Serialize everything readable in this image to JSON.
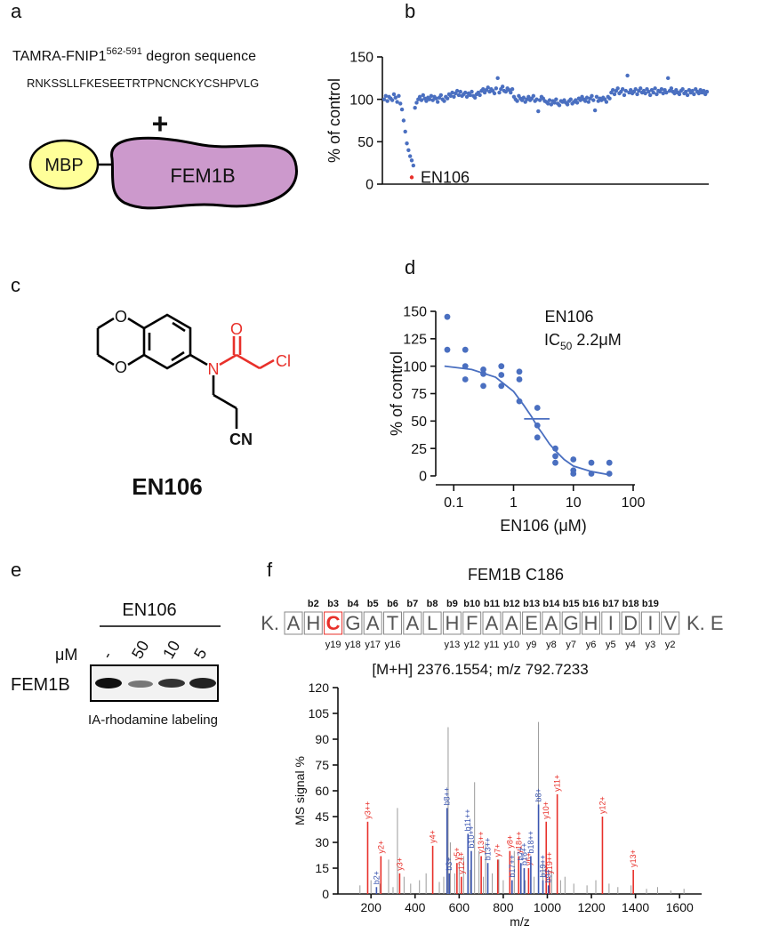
{
  "panels": {
    "a": {
      "label": "a",
      "title_parts": [
        "TAMRA-FNIP1",
        "562-591",
        " degron sequence"
      ],
      "sequence": "RNKSSLLFKESEETRTPNCNCKYCSHPVLG",
      "plus": "+",
      "tag": "MBP",
      "protein": "FEM1B"
    },
    "b": {
      "label": "b"
    },
    "c": {
      "label": "c",
      "atoms": [
        "O",
        "O",
        "N",
        "O",
        "Cl",
        "CN"
      ],
      "name": "EN106"
    },
    "d": {
      "label": "d"
    },
    "e": {
      "label": "e",
      "compound": "EN106",
      "unit": "μM",
      "lanes": [
        "-",
        "50",
        "10",
        "5"
      ],
      "protein": "FEM1B",
      "caption": "IA-rhodamine labeling"
    },
    "f": {
      "label": "f",
      "title": "FEM1B C186",
      "prefix": "K.",
      "residues": [
        "A",
        "H",
        "C",
        "G",
        "A",
        "T",
        "A",
        "L",
        "H",
        "F",
        "A",
        "A",
        "E",
        "A",
        "G",
        "H",
        "I",
        "D",
        "I",
        "V"
      ],
      "modified_residue": 2,
      "suffix": "K. E",
      "b_ions": [
        "b2",
        "b3",
        "b4",
        "b5",
        "b6",
        "b7",
        "b8",
        "b9",
        "b10",
        "b11",
        "b12",
        "b13",
        "b14",
        "b15",
        "b16",
        "b17",
        "b18",
        "b19"
      ],
      "y_ions": [
        "y19",
        "y18",
        "y17",
        "y16",
        "y13",
        "y12",
        "y11",
        "y10",
        "y9",
        "y8",
        "y7",
        "y6",
        "y5",
        "y4",
        "y3",
        "y2"
      ],
      "mass": "[M+H] 2376.1554; m/z 792.7233"
    }
  },
  "chart_data": [
    {
      "type": "scatter",
      "ylabel": "% of control",
      "xlim": [
        0,
        199
      ],
      "ylim": [
        0,
        150
      ],
      "yticks": [
        0,
        50,
        100,
        150
      ],
      "series": [
        {
          "color": "#4a6fc0",
          "values": [
            100,
            104,
            98,
            103,
            101,
            99,
            106,
            102,
            97,
            104,
            95,
            88,
            75,
            62,
            48,
            40,
            33,
            28,
            22,
            90,
            96,
            100,
            103,
            99,
            105,
            101,
            98,
            102,
            100,
            104,
            99,
            103,
            101,
            97,
            102,
            105,
            100,
            98,
            103,
            101,
            106,
            104,
            108,
            103,
            107,
            110,
            105,
            109,
            104,
            106,
            108,
            103,
            107,
            105,
            109,
            104,
            102,
            106,
            108,
            105,
            110,
            112,
            108,
            111,
            114,
            109,
            112,
            110,
            107,
            113,
            125,
            108,
            112,
            115,
            110,
            109,
            113,
            111,
            108,
            112,
            103,
            100,
            98,
            104,
            101,
            99,
            102,
            97,
            100,
            103,
            99,
            101,
            104,
            98,
            100,
            86,
            99,
            103,
            101,
            98,
            97,
            95,
            99,
            94,
            98,
            96,
            100,
            95,
            93,
            98,
            97,
            99,
            96,
            94,
            98,
            100,
            95,
            97,
            99,
            96,
            101,
            99,
            103,
            100,
            98,
            102,
            97,
            101,
            104,
            99,
            87,
            103,
            98,
            101,
            99,
            102,
            100,
            97,
            103,
            101,
            108,
            111,
            106,
            110,
            113,
            107,
            109,
            112,
            105,
            110,
            128,
            108,
            111,
            107,
            109,
            112,
            106,
            110,
            113,
            108,
            110,
            107,
            112,
            109,
            105,
            111,
            108,
            113,
            106,
            110,
            109,
            112,
            107,
            111,
            108,
            125,
            110,
            113,
            109,
            107,
            111,
            108,
            106,
            110,
            112,
            107,
            109,
            105,
            111,
            108,
            110,
            106,
            112,
            109,
            107,
            111,
            108,
            110,
            106,
            109
          ]
        },
        {
          "name": "EN106",
          "color": "#e8302a",
          "x": [
            17
          ],
          "values": [
            8
          ]
        }
      ]
    },
    {
      "type": "scatter",
      "title": "EN106",
      "annotation_parts": [
        "IC",
        "50",
        " 2.2μM"
      ],
      "xlabel": "EN106 (μM)",
      "ylabel": "% of control",
      "xscale": "log",
      "xlim": [
        0.05,
        100
      ],
      "xticks": [
        0.1,
        1,
        10,
        100
      ],
      "ylim": [
        0,
        150
      ],
      "yticks": [
        0,
        25,
        50,
        75,
        100,
        125,
        150
      ],
      "series": [
        {
          "mode": "points",
          "color": "#4a6fc0",
          "x": [
            0.078,
            0.078,
            0.156,
            0.156,
            0.156,
            0.3125,
            0.3125,
            0.3125,
            0.625,
            0.625,
            0.625,
            1.25,
            1.25,
            1.25,
            2.5,
            2.5,
            2.5,
            5,
            5,
            5,
            10,
            10,
            10,
            20,
            20,
            40,
            40
          ],
          "values": [
            145,
            115,
            115,
            100,
            88,
            97,
            93,
            82,
            100,
            92,
            82,
            95,
            88,
            68,
            62,
            46,
            35,
            25,
            18,
            12,
            15,
            5,
            2,
            12,
            2,
            12,
            2
          ]
        },
        {
          "mode": "line",
          "color": "#4a6fc0",
          "x": [
            0.07,
            0.1,
            0.2,
            0.5,
            1,
            1.5,
            2,
            2.5,
            3,
            4,
            5,
            7,
            10,
            20,
            40
          ],
          "values": [
            100,
            99,
            97,
            90,
            77,
            64,
            54,
            45,
            39,
            29,
            23,
            15,
            9,
            4,
            1
          ]
        },
        {
          "mode": "line",
          "color": "#4a6fc0",
          "x": [
            1.5,
            4
          ],
          "values": [
            52,
            52
          ]
        }
      ]
    },
    {
      "type": "spectrum",
      "xlabel": "m/z",
      "ylabel": "MS signal %",
      "xlim": [
        50,
        1700
      ],
      "xticks": [
        200,
        400,
        600,
        800,
        1000,
        1200,
        1400,
        1600
      ],
      "ylim": [
        0,
        120
      ],
      "yticks": [
        0,
        15,
        30,
        45,
        60,
        75,
        90,
        105,
        120
      ],
      "series": [
        {
          "color": "#9a9a9a",
          "x": [
            150,
            200,
            240,
            280,
            300,
            320,
            350,
            380,
            420,
            450,
            480,
            510,
            530,
            550,
            560,
            580,
            600,
            620,
            650,
            670,
            690,
            710,
            720,
            750,
            780,
            800,
            830,
            850,
            880,
            900,
            940,
            960,
            980,
            1020,
            1060,
            1080,
            1120,
            1180,
            1220,
            1280,
            1320,
            1380,
            1450,
            1500,
            1560,
            1620
          ],
          "values": [
            5,
            8,
            6,
            20,
            4,
            50,
            10,
            6,
            8,
            12,
            15,
            7,
            10,
            97,
            30,
            12,
            18,
            22,
            14,
            65,
            25,
            10,
            30,
            12,
            20,
            8,
            15,
            25,
            12,
            8,
            10,
            100,
            18,
            14,
            8,
            10,
            6,
            5,
            8,
            6,
            4,
            5,
            3,
            4,
            2,
            3
          ]
        },
        {
          "color": "#e8302a",
          "labels": [
            "y3++",
            "y2+",
            "y3+",
            "y4+",
            "y5+",
            "y12++",
            "y13++",
            "y7+",
            "y8+",
            "y18++",
            "y6+",
            "y19++",
            "y10+",
            "y11+",
            "y12+",
            "y13+"
          ],
          "x": [
            185,
            245,
            330,
            480,
            590,
            610,
            700,
            775,
            830,
            870,
            915,
            1010,
            995,
            1045,
            1250,
            1390
          ],
          "values": [
            42,
            22,
            12,
            28,
            18,
            10,
            22,
            20,
            25,
            22,
            15,
            10,
            42,
            58,
            45,
            14
          ]
        },
        {
          "color": "#3a55b0",
          "labels": [
            "b2+",
            "b8++",
            "b3+",
            "b11++",
            "b10++",
            "b13++",
            "b17++",
            "b7+",
            "b16++",
            "b18++",
            "b19++",
            "b8+",
            "b9+"
          ],
          "x": [
            225,
            545,
            555,
            640,
            655,
            730,
            840,
            880,
            895,
            925,
            980,
            960,
            1005
          ],
          "values": [
            4,
            50,
            12,
            35,
            25,
            18,
            8,
            18,
            15,
            22,
            8,
            52,
            5
          ]
        }
      ]
    }
  ]
}
